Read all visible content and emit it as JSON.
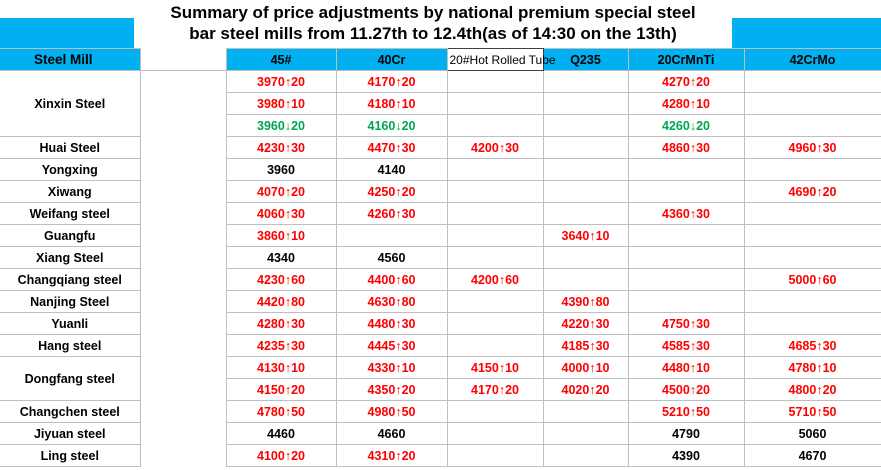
{
  "title": {
    "line1": "Summary of price adjustments by national premium special steel",
    "line2": "bar steel mills from 11.27th to 12.4th(as of 14:30 on the 13th)"
  },
  "colors": {
    "header_bg": "#00b0f0",
    "up": "#ff0000",
    "down": "#00a550",
    "flat": "#000000"
  },
  "headers": {
    "mill": "Steel Mill",
    "columns": [
      "45#",
      "40Cr",
      "20#Hot Rolled Tube",
      "Q235",
      "20CrMnTi",
      "42CrMo"
    ]
  },
  "mills": [
    {
      "name": "Xinxin Steel",
      "rows": [
        [
          {
            "v": "3970↑20",
            "t": "up"
          },
          {
            "v": "4170↑20",
            "t": "up"
          },
          null,
          null,
          {
            "v": "4270↑20",
            "t": "up"
          },
          null
        ],
        [
          {
            "v": "3980↑10",
            "t": "up"
          },
          {
            "v": "4180↑10",
            "t": "up"
          },
          null,
          null,
          {
            "v": "4280↑10",
            "t": "up"
          },
          null
        ],
        [
          {
            "v": "3960↓20",
            "t": "down"
          },
          {
            "v": "4160↓20",
            "t": "down"
          },
          null,
          null,
          {
            "v": "4260↓20",
            "t": "down"
          },
          null
        ]
      ]
    },
    {
      "name": "Huai Steel",
      "rows": [
        [
          {
            "v": "4230↑30",
            "t": "up"
          },
          {
            "v": "4470↑30",
            "t": "up"
          },
          {
            "v": "4200↑30",
            "t": "up"
          },
          null,
          {
            "v": "4860↑30",
            "t": "up"
          },
          {
            "v": "4960↑30",
            "t": "up"
          }
        ]
      ]
    },
    {
      "name": "Yongxing",
      "rows": [
        [
          {
            "v": "3960",
            "t": "flat"
          },
          {
            "v": "4140",
            "t": "flat"
          },
          null,
          null,
          null,
          null
        ]
      ]
    },
    {
      "name": "Xiwang",
      "rows": [
        [
          {
            "v": "4070↑20",
            "t": "up"
          },
          {
            "v": "4250↑20",
            "t": "up"
          },
          null,
          null,
          null,
          {
            "v": "4690↑20",
            "t": "up"
          }
        ]
      ]
    },
    {
      "name": "Weifang steel",
      "rows": [
        [
          {
            "v": "4060↑30",
            "t": "up"
          },
          {
            "v": "4260↑30",
            "t": "up"
          },
          null,
          null,
          {
            "v": "4360↑30",
            "t": "up"
          },
          null
        ]
      ]
    },
    {
      "name": "Guangfu",
      "rows": [
        [
          {
            "v": "3860↑10",
            "t": "up"
          },
          null,
          null,
          {
            "v": "3640↑10",
            "t": "up"
          },
          null,
          null
        ]
      ]
    },
    {
      "name": "Xiang Steel",
      "rows": [
        [
          {
            "v": "4340",
            "t": "flat"
          },
          {
            "v": "4560",
            "t": "flat"
          },
          null,
          null,
          null,
          null
        ]
      ]
    },
    {
      "name": "Changqiang steel",
      "rows": [
        [
          {
            "v": "4230↑60",
            "t": "up"
          },
          {
            "v": "4400↑60",
            "t": "up"
          },
          {
            "v": "4200↑60",
            "t": "up"
          },
          null,
          null,
          {
            "v": "5000↑60",
            "t": "up"
          }
        ]
      ]
    },
    {
      "name": "Nanjing Steel",
      "rows": [
        [
          {
            "v": "4420↑80",
            "t": "up"
          },
          {
            "v": "4630↑80",
            "t": "up"
          },
          null,
          {
            "v": "4390↑80",
            "t": "up"
          },
          null,
          null
        ]
      ]
    },
    {
      "name": "Yuanli",
      "rows": [
        [
          {
            "v": "4280↑30",
            "t": "up"
          },
          {
            "v": "4480↑30",
            "t": "up"
          },
          null,
          {
            "v": "4220↑30",
            "t": "up"
          },
          {
            "v": "4750↑30",
            "t": "up"
          },
          null
        ]
      ]
    },
    {
      "name": "Hang steel",
      "rows": [
        [
          {
            "v": "4235↑30",
            "t": "up"
          },
          {
            "v": "4445↑30",
            "t": "up"
          },
          null,
          {
            "v": "4185↑30",
            "t": "up"
          },
          {
            "v": "4585↑30",
            "t": "up"
          },
          {
            "v": "4685↑30",
            "t": "up"
          }
        ]
      ]
    },
    {
      "name": "Dongfang steel",
      "rows": [
        [
          {
            "v": "4130↑10",
            "t": "up"
          },
          {
            "v": "4330↑10",
            "t": "up"
          },
          {
            "v": "4150↑10",
            "t": "up"
          },
          {
            "v": "4000↑10",
            "t": "up"
          },
          {
            "v": "4480↑10",
            "t": "up"
          },
          {
            "v": "4780↑10",
            "t": "up"
          }
        ],
        [
          {
            "v": "4150↑20",
            "t": "up"
          },
          {
            "v": "4350↑20",
            "t": "up"
          },
          {
            "v": "4170↑20",
            "t": "up"
          },
          {
            "v": "4020↑20",
            "t": "up"
          },
          {
            "v": "4500↑20",
            "t": "up"
          },
          {
            "v": "4800↑20",
            "t": "up"
          }
        ]
      ]
    },
    {
      "name": "Changchen steel",
      "rows": [
        [
          {
            "v": "4780↑50",
            "t": "up"
          },
          {
            "v": "4980↑50",
            "t": "up"
          },
          null,
          null,
          {
            "v": "5210↑50",
            "t": "up"
          },
          {
            "v": "5710↑50",
            "t": "up"
          }
        ]
      ]
    },
    {
      "name": "Jiyuan steel",
      "rows": [
        [
          {
            "v": "4460",
            "t": "flat"
          },
          {
            "v": "4660",
            "t": "flat"
          },
          null,
          null,
          {
            "v": "4790",
            "t": "flat"
          },
          {
            "v": "5060",
            "t": "flat"
          }
        ]
      ]
    },
    {
      "name": "Ling steel",
      "rows": [
        [
          {
            "v": "4100↑20",
            "t": "up"
          },
          {
            "v": "4310↑20",
            "t": "up"
          },
          null,
          null,
          {
            "v": "4390",
            "t": "flat"
          },
          {
            "v": "4670",
            "t": "flat"
          }
        ]
      ]
    }
  ]
}
